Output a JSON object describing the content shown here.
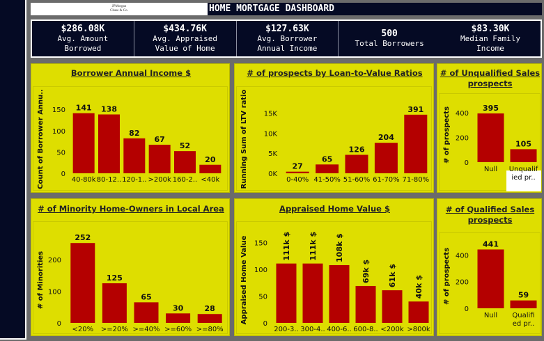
{
  "header": {
    "logo_line1": "JPMorgan",
    "logo_line2": "Chase & Co.",
    "title": "HOME MORTGAGE DASHBOARD"
  },
  "kpis": [
    {
      "value": "$286.08K",
      "label1": "Avg. Amount",
      "label2": "Borrowed"
    },
    {
      "value": "$434.76K",
      "label1": "Avg. Appraised",
      "label2": "Value of Home"
    },
    {
      "value": "$127.63K",
      "label1": "Avg. Borrower",
      "label2": "Annual Income"
    },
    {
      "value": "500",
      "label1": "Total Borrowers",
      "label2": ""
    },
    {
      "value": "$83.30K",
      "label1": "Median Family",
      "label2": "Income"
    }
  ],
  "colors": {
    "bar": "#b40000",
    "panel": "#dede00",
    "dark": "#050a24"
  },
  "charts": {
    "income": {
      "title": "Borrower Annual Income $",
      "chart_data": {
        "type": "bar",
        "categories": [
          "40-80k",
          "80-12..",
          "120-1..",
          ">200k",
          "160-2..",
          "<40k"
        ],
        "values": [
          141,
          138,
          82,
          67,
          52,
          20
        ],
        "ylabel": "Count of Borrower Annu..",
        "ylim": [
          0,
          160
        ],
        "yticks": [
          0,
          50,
          100,
          150
        ],
        "ytick_labels": [
          "0",
          "50",
          "100",
          "150"
        ],
        "value_labels": [
          "141",
          "138",
          "82",
          "67",
          "52",
          "20"
        ]
      }
    },
    "ltv": {
      "title": "# of prospects by Loan-to-Value Ratios",
      "chart_data": {
        "type": "bar",
        "categories": [
          "0-40%",
          "41-50%",
          "51-60%",
          "61-70%",
          "71-80%"
        ],
        "values": [
          400,
          2200,
          4600,
          7600,
          14600
        ],
        "ylabel": "Running Sum of LTV ratio",
        "ylim": [
          0,
          17000
        ],
        "yticks": [
          0,
          5000,
          10000,
          15000
        ],
        "ytick_labels": [
          "0K",
          "5K",
          "10K",
          "15K"
        ],
        "value_labels": [
          "27",
          "65",
          "126",
          "204",
          "391"
        ]
      }
    },
    "unqualified": {
      "title_line1": "# of Unqualified Sales",
      "title_line2": "prospects",
      "chart_data": {
        "type": "bar",
        "categories": [
          "Null",
          "Unqualif ied pr.."
        ],
        "category_lines": [
          [
            "Null"
          ],
          [
            "Unqualif",
            "ied pr.."
          ]
        ],
        "values": [
          395,
          105
        ],
        "ylabel": "# of prospects",
        "ylim": [
          0,
          440
        ],
        "yticks": [
          0,
          200,
          400
        ],
        "ytick_labels": [
          "0",
          "200",
          "400"
        ],
        "value_labels": [
          "395",
          "105"
        ]
      }
    },
    "minority": {
      "title": "# of Minority Home-Owners in Local Area",
      "chart_data": {
        "type": "bar",
        "categories": [
          "<20%",
          ">=20%",
          ">=40%",
          ">=60%",
          ">=80%"
        ],
        "values": [
          252,
          125,
          65,
          30,
          28
        ],
        "ylabel": "# of Minorities",
        "ylim": [
          0,
          270
        ],
        "yticks": [
          0,
          100,
          200
        ],
        "ytick_labels": [
          "0",
          "100",
          "200"
        ],
        "value_labels": [
          "252",
          "125",
          "65",
          "30",
          "28"
        ]
      }
    },
    "appraised": {
      "title": "Appraised Home Value $",
      "chart_data": {
        "type": "bar",
        "categories": [
          "200-3..",
          "300-4..",
          "400-6..",
          "600-8..",
          "<200k",
          ">800k"
        ],
        "values": [
          111,
          111,
          108,
          69,
          61,
          40
        ],
        "ylabel": "Appraised Home Value",
        "ylim": [
          0,
          160
        ],
        "yticks": [
          0,
          50,
          100,
          150
        ],
        "ytick_labels": [
          "0",
          "50",
          "100",
          "150"
        ],
        "value_labels": [
          "111k $",
          "111k $",
          "108k $",
          "69k $",
          "61k $",
          "40k $"
        ]
      }
    },
    "qualified": {
      "title_line1": "# of Qualified Sales",
      "title_line2": "prospects",
      "chart_data": {
        "type": "bar",
        "categories": [
          "Null",
          "Qualified pr.."
        ],
        "category_lines": [
          [
            "Null"
          ],
          [
            "Qualifi",
            "ed pr.."
          ]
        ],
        "values": [
          441,
          59
        ],
        "ylabel": "# of prospects",
        "ylim": [
          0,
          480
        ],
        "yticks": [
          0,
          200,
          400
        ],
        "ytick_labels": [
          "0",
          "200",
          "400"
        ],
        "value_labels": [
          "441",
          "59"
        ]
      }
    }
  }
}
